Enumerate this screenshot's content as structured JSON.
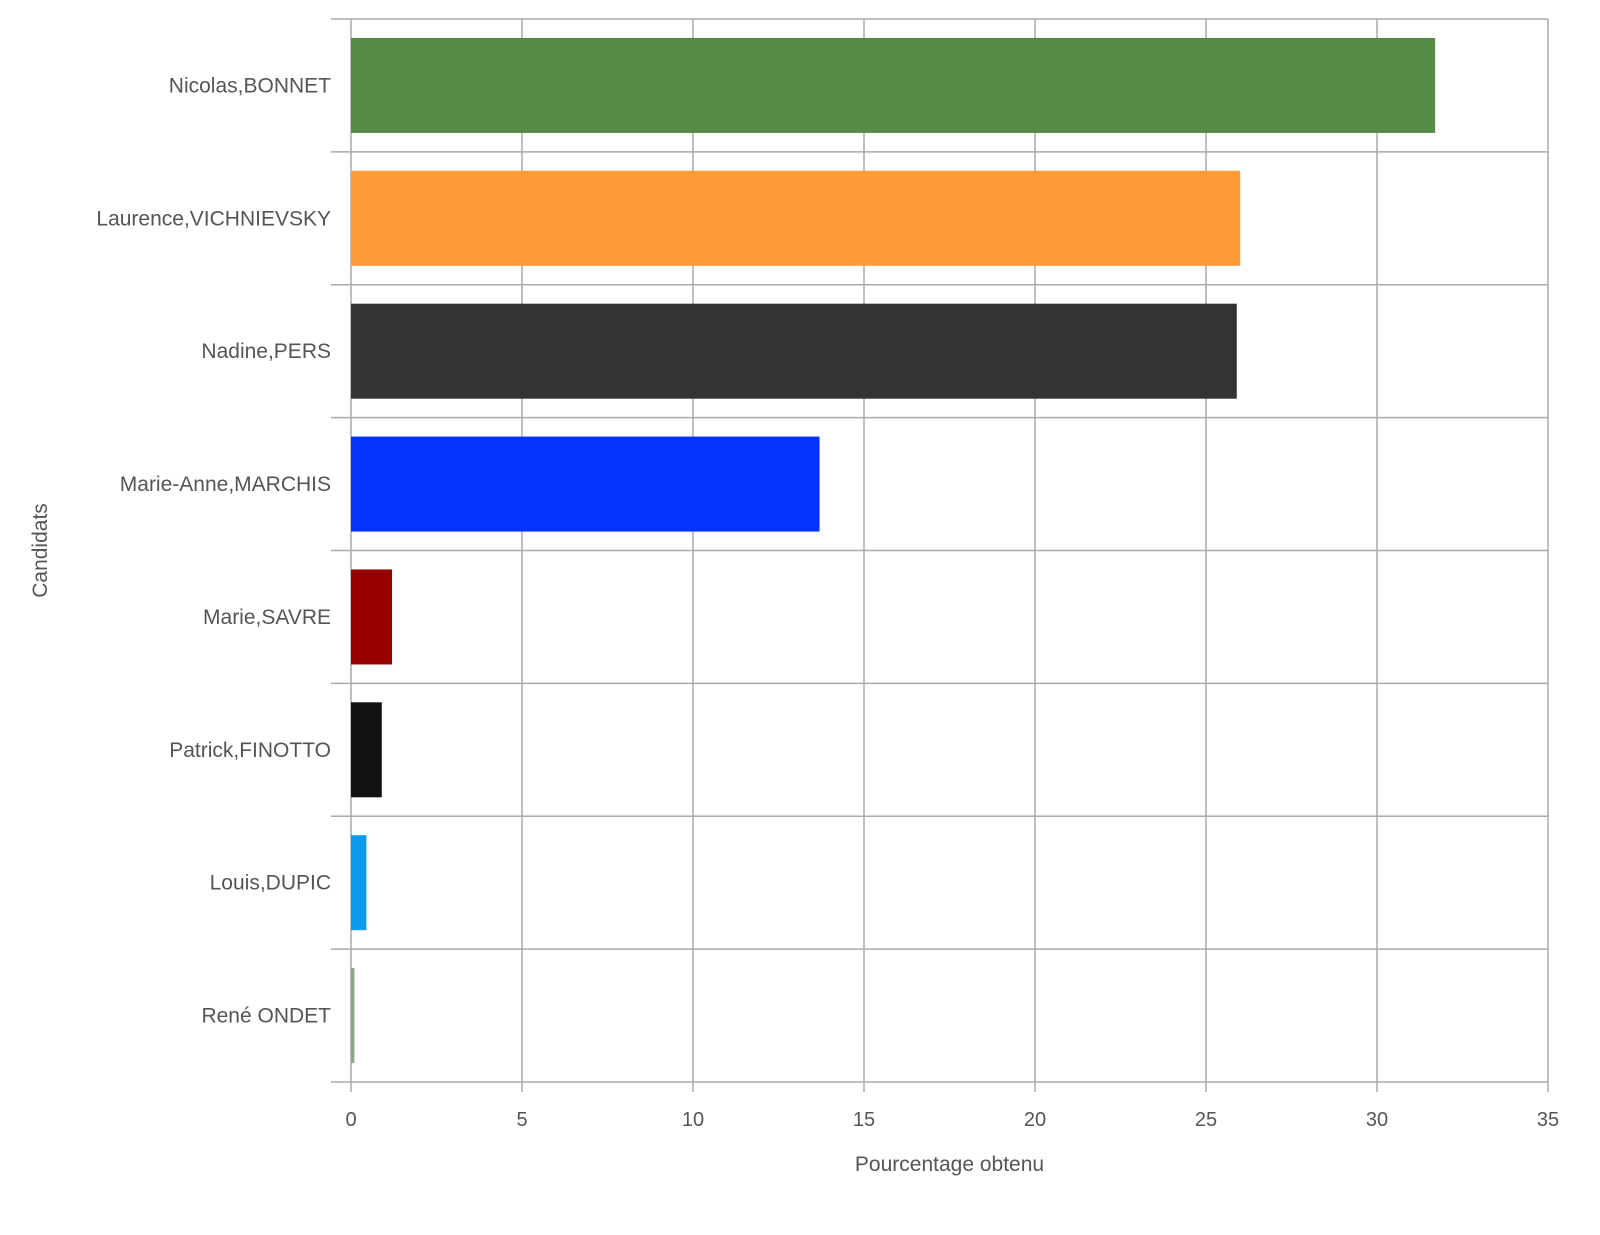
{
  "chart_data": {
    "type": "bar",
    "orientation": "horizontal",
    "title": "",
    "xlabel": "Pourcentage obtenu",
    "ylabel": "Candidats",
    "xlim": [
      0,
      35
    ],
    "xticks": [
      "0",
      "5",
      "10",
      "15",
      "20",
      "25",
      "30",
      "35"
    ],
    "grid": true,
    "categories": [
      "Nicolas,BONNET",
      "Laurence,VICHNIEVSKY",
      "Nadine,PERS",
      "Marie-Anne,MARCHIS",
      "Marie,SAVRE",
      "Patrick,FINOTTO",
      "Louis,DUPIC",
      "René ONDET"
    ],
    "values": [
      31.7,
      26.0,
      25.9,
      13.7,
      1.2,
      0.9,
      0.45,
      0.1
    ],
    "colors": [
      "#558b46",
      "#ff9a36",
      "#333333",
      "#0433ff",
      "#990000",
      "#111111",
      "#0b9bec",
      "#8aaa86"
    ]
  }
}
